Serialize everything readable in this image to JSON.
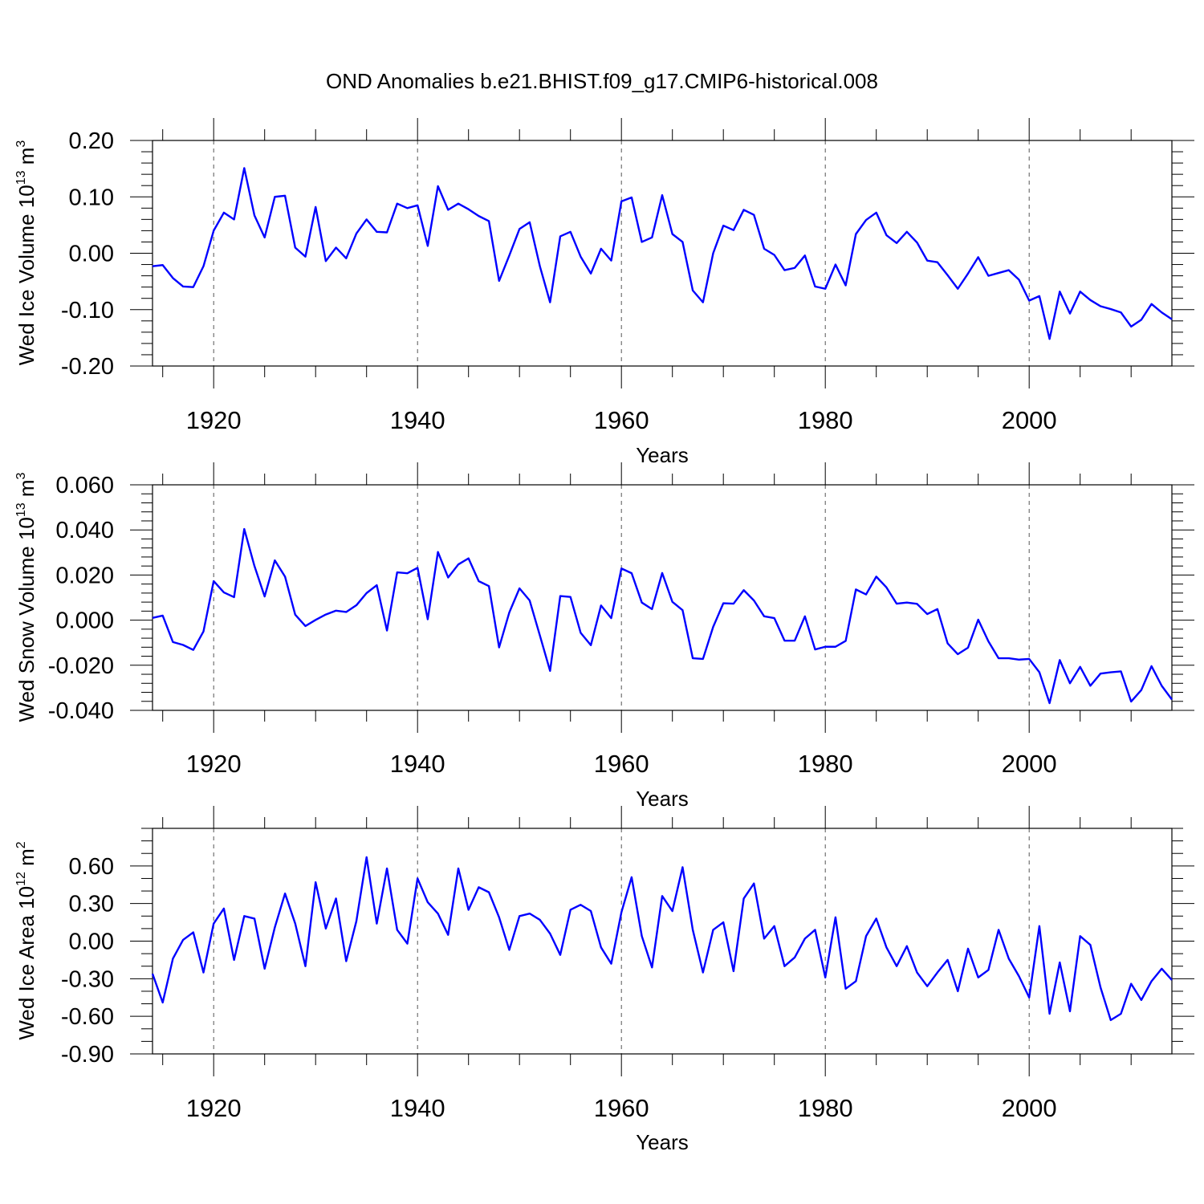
{
  "title": "OND Anomalies b.e21.BHIST.f09_g17.CMIP6-historical.008",
  "colors": {
    "series": "#0000ff",
    "axes": "#000000",
    "grid": "#555555"
  },
  "chart_data": [
    {
      "type": "line",
      "name": "ice-volume",
      "ylabel": "Wed Ice Volume",
      "ylabel_base": "10",
      "ylabel_exp": "13",
      "ylabel_unit": "m",
      "ylabel_unit_exp": "3",
      "xlabel": "Years",
      "xlim": [
        1914,
        2014
      ],
      "ylim": [
        -0.2,
        0.2
      ],
      "yticks": [
        "0.20",
        "0.10",
        "0.00",
        "-0.10",
        "-0.20"
      ],
      "ytick_values": [
        0.2,
        0.1,
        0.0,
        -0.1,
        -0.2
      ],
      "yminor_step": 0.02,
      "xticks": [
        "1920",
        "1940",
        "1960",
        "1980",
        "2000"
      ],
      "xtick_values": [
        1920,
        1940,
        1960,
        1980,
        2000
      ],
      "grid": "vertical dashed at major x ticks",
      "x_start": 1914,
      "values": [
        -0.023,
        -0.021,
        -0.044,
        -0.059,
        -0.06,
        -0.023,
        0.04,
        0.072,
        0.06,
        0.151,
        0.067,
        0.028,
        0.1,
        0.102,
        0.01,
        -0.006,
        0.082,
        -0.014,
        0.01,
        -0.009,
        0.035,
        0.06,
        0.038,
        0.037,
        0.088,
        0.08,
        0.085,
        0.013,
        0.119,
        0.077,
        0.088,
        0.078,
        0.066,
        0.057,
        -0.049,
        -0.004,
        0.043,
        0.055,
        -0.023,
        -0.087,
        0.03,
        0.038,
        -0.006,
        -0.036,
        0.008,
        -0.013,
        0.092,
        0.099,
        0.02,
        0.028,
        0.103,
        0.034,
        0.02,
        -0.066,
        -0.087,
        0.0,
        0.049,
        0.041,
        0.077,
        0.068,
        0.008,
        -0.003,
        -0.03,
        -0.026,
        -0.004,
        -0.059,
        -0.063,
        -0.02,
        -0.057,
        0.034,
        0.059,
        0.072,
        0.032,
        0.018,
        0.038,
        0.019,
        -0.013,
        -0.016,
        -0.039,
        -0.063,
        -0.036,
        -0.007,
        -0.04,
        -0.035,
        -0.03,
        -0.047,
        -0.084,
        -0.076,
        -0.152,
        -0.068,
        -0.107,
        -0.068,
        -0.083,
        -0.094,
        -0.099,
        -0.105,
        -0.13,
        -0.118,
        -0.09,
        -0.105,
        -0.117
      ]
    },
    {
      "type": "line",
      "name": "snow-volume",
      "ylabel": "Wed Snow Volume",
      "ylabel_base": "10",
      "ylabel_exp": "13",
      "ylabel_unit": "m",
      "ylabel_unit_exp": "3",
      "xlabel": "Years",
      "xlim": [
        1914,
        2014
      ],
      "ylim": [
        -0.04,
        0.06
      ],
      "yticks": [
        "0.060",
        "0.040",
        "0.020",
        "0.000",
        "-0.020",
        "-0.040"
      ],
      "ytick_values": [
        0.06,
        0.04,
        0.02,
        0.0,
        -0.02,
        -0.04
      ],
      "yminor_step": 0.004,
      "xticks": [
        "1920",
        "1940",
        "1960",
        "1980",
        "2000"
      ],
      "xtick_values": [
        1920,
        1940,
        1960,
        1980,
        2000
      ],
      "grid": "vertical dashed at major x ticks",
      "x_start": 1914,
      "values": [
        0.001,
        0.002,
        -0.0097,
        -0.011,
        -0.0132,
        -0.005,
        0.0173,
        0.0123,
        0.0102,
        0.0404,
        0.024,
        0.0105,
        0.0265,
        0.0193,
        0.0024,
        -0.0026,
        0.0001,
        0.0025,
        0.0042,
        0.0036,
        0.0066,
        0.012,
        0.0155,
        -0.0046,
        0.0212,
        0.0208,
        0.0232,
        0.0004,
        0.0302,
        0.0189,
        0.0247,
        0.0274,
        0.0173,
        0.0151,
        -0.0121,
        0.0034,
        0.0141,
        0.0087,
        -0.0068,
        -0.0225,
        0.0107,
        0.0103,
        -0.0056,
        -0.0111,
        0.0065,
        0.0009,
        0.0229,
        0.0208,
        0.0078,
        0.0049,
        0.0209,
        0.0081,
        0.0044,
        -0.0169,
        -0.0172,
        -0.003,
        0.0075,
        0.0073,
        0.0133,
        0.0087,
        0.0017,
        0.0009,
        -0.0091,
        -0.0091,
        0.0017,
        -0.013,
        -0.0118,
        -0.0118,
        -0.0092,
        0.0136,
        0.0114,
        0.0193,
        0.0145,
        0.0073,
        0.0078,
        0.0072,
        0.0027,
        0.0049,
        -0.0103,
        -0.0151,
        -0.0122,
        0.0002,
        -0.0094,
        -0.0169,
        -0.0169,
        -0.0175,
        -0.0172,
        -0.0231,
        -0.0368,
        -0.0177,
        -0.028,
        -0.0207,
        -0.0291,
        -0.0237,
        -0.0231,
        -0.0227,
        -0.0361,
        -0.031,
        -0.0204,
        -0.0291,
        -0.0352
      ]
    },
    {
      "type": "line",
      "name": "ice-area",
      "ylabel": "Wed Ice Area",
      "ylabel_base": "10",
      "ylabel_exp": "12",
      "ylabel_unit": "m",
      "ylabel_unit_exp": "2",
      "xlabel": "Years",
      "xlim": [
        1914,
        2014
      ],
      "ylim": [
        -0.9,
        0.9
      ],
      "yticks": [
        "0.60",
        "0.30",
        "0.00",
        "-0.30",
        "-0.60",
        "-0.90"
      ],
      "ytick_values": [
        0.6,
        0.3,
        0.0,
        -0.3,
        -0.6,
        -0.9
      ],
      "yminor_step": 0.1,
      "xticks": [
        "1920",
        "1940",
        "1960",
        "1980",
        "2000"
      ],
      "xtick_values": [
        1920,
        1940,
        1960,
        1980,
        2000
      ],
      "grid": "vertical dashed at major x ticks",
      "x_start": 1914,
      "values": [
        -0.26,
        -0.49,
        -0.14,
        0.01,
        0.07,
        -0.25,
        0.14,
        0.26,
        -0.15,
        0.2,
        0.18,
        -0.22,
        0.11,
        0.38,
        0.14,
        -0.2,
        0.47,
        0.1,
        0.34,
        -0.16,
        0.16,
        0.67,
        0.14,
        0.58,
        0.09,
        -0.02,
        0.5,
        0.31,
        0.22,
        0.05,
        0.58,
        0.25,
        0.43,
        0.39,
        0.19,
        -0.07,
        0.2,
        0.22,
        0.17,
        0.06,
        -0.11,
        0.25,
        0.29,
        0.24,
        -0.05,
        -0.18,
        0.23,
        0.51,
        0.04,
        -0.21,
        0.36,
        0.24,
        0.59,
        0.09,
        -0.25,
        0.09,
        0.15,
        -0.24,
        0.34,
        0.46,
        0.02,
        0.12,
        -0.2,
        -0.13,
        0.02,
        0.09,
        -0.29,
        0.19,
        -0.38,
        -0.32,
        0.04,
        0.18,
        -0.05,
        -0.2,
        -0.04,
        -0.25,
        -0.36,
        -0.25,
        -0.15,
        -0.4,
        -0.06,
        -0.29,
        -0.23,
        0.09,
        -0.14,
        -0.28,
        -0.45,
        0.12,
        -0.58,
        -0.17,
        -0.56,
        0.04,
        -0.03,
        -0.37,
        -0.63,
        -0.58,
        -0.34,
        -0.47,
        -0.32,
        -0.22,
        -0.31
      ]
    }
  ]
}
